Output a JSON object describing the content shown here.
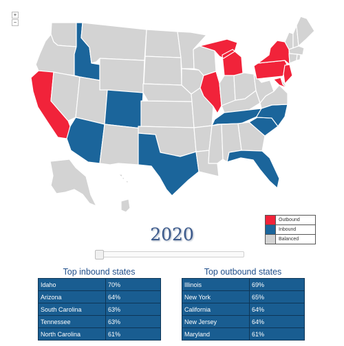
{
  "zoom": {
    "in_label": "+",
    "out_label": "−"
  },
  "colors": {
    "outbound": "#f1233a",
    "inbound": "#1b659b",
    "balanced": "#d3d3d3",
    "border": "#ffffff"
  },
  "legend": [
    {
      "label": "Outbound",
      "color": "#f1233a"
    },
    {
      "label": "Inbound",
      "color": "#1b659b"
    },
    {
      "label": "Balanced",
      "color": "#d3d3d3"
    }
  ],
  "year": "2020",
  "slider": {
    "value_label": "2020"
  },
  "inbound_table": {
    "title": "Top inbound states",
    "rows": [
      {
        "state": "Idaho",
        "pct": "70%"
      },
      {
        "state": "Arizona",
        "pct": "64%"
      },
      {
        "state": "South Carolina",
        "pct": "63%"
      },
      {
        "state": "Tennessee",
        "pct": "63%"
      },
      {
        "state": "North Carolina",
        "pct": "61%"
      }
    ]
  },
  "outbound_table": {
    "title": "Top outbound states",
    "rows": [
      {
        "state": "Illinois",
        "pct": "69%"
      },
      {
        "state": "New York",
        "pct": "65%"
      },
      {
        "state": "California",
        "pct": "64%"
      },
      {
        "state": "New Jersey",
        "pct": "64%"
      },
      {
        "state": "Maryland",
        "pct": "61%"
      }
    ]
  },
  "state_status": {
    "WA": "balanced",
    "OR": "balanced",
    "CA": "outbound",
    "NV": "balanced",
    "ID": "inbound",
    "MT": "balanced",
    "WY": "balanced",
    "UT": "balanced",
    "AZ": "inbound",
    "CO": "inbound",
    "NM": "balanced",
    "ND": "balanced",
    "SD": "balanced",
    "NE": "balanced",
    "KS": "balanced",
    "OK": "balanced",
    "TX": "inbound",
    "MN": "balanced",
    "IA": "balanced",
    "MO": "balanced",
    "AR": "balanced",
    "LA": "balanced",
    "WI": "balanced",
    "IL": "outbound",
    "MI": "outbound",
    "IN": "balanced",
    "OH": "balanced",
    "KY": "balanced",
    "TN": "inbound",
    "MS": "balanced",
    "AL": "balanced",
    "GA": "balanced",
    "FL": "inbound",
    "SC": "inbound",
    "NC": "inbound",
    "VA": "balanced",
    "WV": "balanced",
    "PA": "outbound",
    "NY": "outbound",
    "NJ": "outbound",
    "MD": "outbound",
    "DE": "balanced",
    "VT": "balanced",
    "NH": "balanced",
    "ME": "balanced",
    "MA": "balanced",
    "CT": "balanced",
    "RI": "balanced",
    "AK": "balanced",
    "HI": "balanced"
  }
}
